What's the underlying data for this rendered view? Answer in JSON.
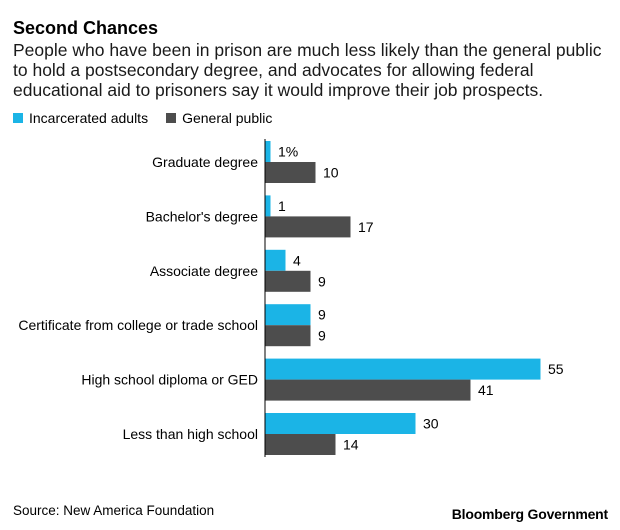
{
  "title": "Second Chances",
  "subtitle": "People who have been in prison are much less likely than the general public to hold a postsecondary degree, and advocates for allowing federal educational aid to prisoners say it would improve their job prospects.",
  "source": "Source: New America Foundation",
  "brand": "Bloomberg Government",
  "colors": {
    "incarcerated": "#1bb4e6",
    "general": "#4d4d4d"
  },
  "chart_data": {
    "type": "bar",
    "orientation": "horizontal",
    "categories": [
      "Graduate degree",
      "Bachelor's degree",
      "Associate degree",
      "Certificate from college or trade school",
      "High school diploma or GED",
      "Less than high school"
    ],
    "series": [
      {
        "name": "Incarcerated adults",
        "values": [
          1,
          1,
          4,
          9,
          55,
          30
        ],
        "labels": [
          "1%",
          "1",
          "4",
          "9",
          "55",
          "30"
        ]
      },
      {
        "name": "General public",
        "values": [
          10,
          17,
          9,
          9,
          41,
          14
        ],
        "labels": [
          "10",
          "17",
          "9",
          "9",
          "41",
          "14"
        ]
      }
    ],
    "unit": "%",
    "xlim": [
      0,
      55
    ],
    "grid": false,
    "legend": "top-left"
  }
}
